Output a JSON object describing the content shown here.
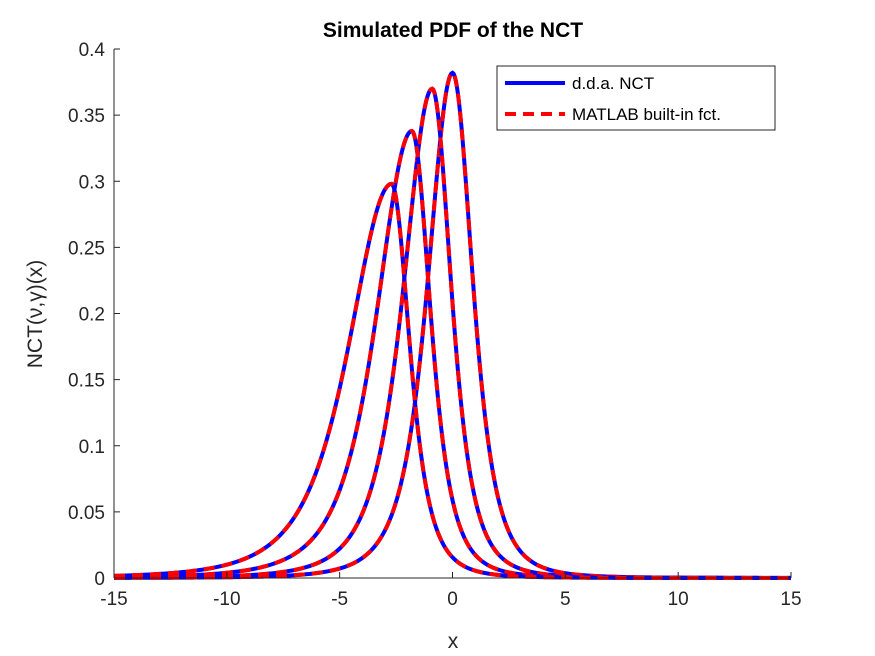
{
  "chart_data": {
    "type": "line",
    "title": "Simulated PDF of the NCT",
    "xlabel": "x",
    "ylabel": "NCT(ν,γ)(x)",
    "xlim": [
      -15,
      15
    ],
    "ylim": [
      0,
      0.4
    ],
    "xticks": [
      "-15",
      "-10",
      "-5",
      "0",
      "5",
      "10",
      "15"
    ],
    "yticks": [
      "0",
      "0.05",
      "0.1",
      "0.15",
      "0.2",
      "0.25",
      "0.3",
      "0.35",
      "0.4"
    ],
    "grid": false,
    "legend_position": "top-right",
    "legend": [
      {
        "label": "d.d.a. NCT",
        "color": "#0000FF",
        "style": "solid"
      },
      {
        "label": "MATLAB built-in fct.",
        "color": "#FF0000",
        "style": "dashed"
      }
    ],
    "curves": [
      {
        "peak_x": 0.0,
        "peak_y": 0.382,
        "left_scale": 1.15,
        "right_scale": 0.95
      },
      {
        "peak_x": -0.9,
        "peak_y": 0.37,
        "left_scale": 1.35,
        "right_scale": 0.9
      },
      {
        "peak_x": -1.8,
        "peak_y": 0.338,
        "left_scale": 1.65,
        "right_scale": 0.88
      },
      {
        "peak_x": -2.7,
        "peak_y": 0.298,
        "left_scale": 2.0,
        "right_scale": 0.85
      }
    ],
    "colors": {
      "solid": "#0000FF",
      "dashed": "#FF0000",
      "axis": "#262626"
    }
  }
}
